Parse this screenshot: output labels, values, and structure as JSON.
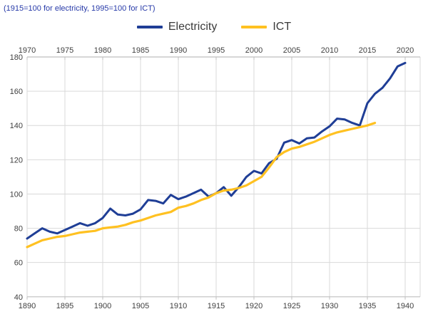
{
  "subtitle": "(1915=100 for electricity, 1995=100 for ICT)",
  "legend": {
    "electricity_label": "Electricity",
    "ict_label": "ICT"
  },
  "colors": {
    "electricity_line": "#1F3E96",
    "ict_line": "#FFC121",
    "subtitle_text": "#2639A8",
    "gridline": "#D9D9D9",
    "axis_line": "#BFBFBF",
    "tick_text": "#404040"
  },
  "chart_data": {
    "type": "line",
    "title": "",
    "subtitle": "(1915=100 for electricity, 1995=100 for ICT)",
    "grid": true,
    "legend_position": "top",
    "ylabel": "",
    "xlabel": "",
    "ylim": [
      40,
      180
    ],
    "yticks": [
      40,
      60,
      80,
      100,
      120,
      140,
      160,
      180
    ],
    "bottom_axis_ticks": [
      1890,
      1895,
      1900,
      1905,
      1910,
      1915,
      1920,
      1925,
      1930,
      1935,
      1940
    ],
    "top_axis_ticks": [
      1970,
      1975,
      1980,
      1985,
      1990,
      1995,
      2000,
      2005,
      2010,
      2015,
      2020
    ],
    "axis_alignment": "top axis year = bottom axis year + 80",
    "series": [
      {
        "name": "Electricity",
        "axis": "bottom",
        "years": [
          1890,
          1891,
          1892,
          1893,
          1894,
          1895,
          1896,
          1897,
          1898,
          1899,
          1900,
          1901,
          1902,
          1903,
          1904,
          1905,
          1906,
          1907,
          1908,
          1909,
          1910,
          1911,
          1912,
          1913,
          1914,
          1915,
          1916,
          1917,
          1918,
          1919,
          1920,
          1921,
          1922,
          1923,
          1924,
          1925,
          1926,
          1927,
          1928,
          1929,
          1930,
          1931,
          1932,
          1933,
          1934,
          1935,
          1936,
          1937,
          1938,
          1939,
          1940
        ],
        "values": [
          74,
          77,
          80,
          78,
          77,
          79,
          81,
          83,
          81.5,
          83,
          86,
          91.5,
          88,
          87.5,
          88.5,
          91,
          96.5,
          96,
          94.5,
          99.5,
          97,
          98.5,
          100.5,
          102.5,
          98.5,
          100.5,
          104,
          99,
          104,
          110,
          113.5,
          112,
          118,
          120.5,
          130,
          131.5,
          129.5,
          132.5,
          133,
          136.5,
          139.5,
          144,
          143.5,
          141.5,
          140,
          153,
          158.5,
          162,
          167.5,
          174.5,
          176.5
        ]
      },
      {
        "name": "ICT",
        "axis": "top",
        "years": [
          1970,
          1971,
          1972,
          1973,
          1974,
          1975,
          1976,
          1977,
          1978,
          1979,
          1980,
          1981,
          1982,
          1983,
          1984,
          1985,
          1986,
          1987,
          1988,
          1989,
          1990,
          1991,
          1992,
          1993,
          1994,
          1995,
          1996,
          1997,
          1998,
          1999,
          2000,
          2001,
          2002,
          2003,
          2004,
          2005,
          2006,
          2007,
          2008,
          2009,
          2010,
          2011,
          2012,
          2013,
          2014,
          2015,
          2016
        ],
        "values": [
          69,
          71,
          73,
          74,
          75,
          75.5,
          76.5,
          77.5,
          78,
          78.5,
          80,
          80.5,
          81,
          82,
          83.5,
          84.5,
          86,
          87.5,
          88.5,
          89.5,
          92,
          93,
          94.5,
          96.5,
          98,
          100.5,
          102,
          102.5,
          103.5,
          105,
          107.5,
          110,
          115.5,
          121.5,
          124.5,
          126.5,
          127.5,
          129,
          130.5,
          132.5,
          134.5,
          136,
          137,
          138,
          139,
          140,
          141.5
        ]
      }
    ]
  }
}
